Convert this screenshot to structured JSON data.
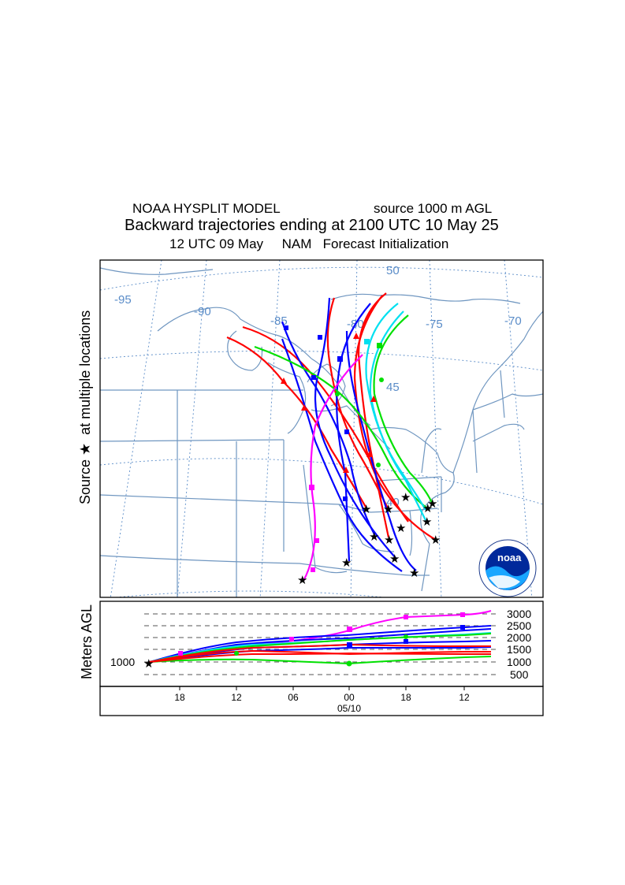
{
  "title": {
    "model": "NOAA HYSPLIT MODEL",
    "source": "source 1000 m AGL",
    "line2": "Backward trajectories ending at 2100 UTC 10 May 25",
    "line3": "12 UTC 09 May     NAM   Forecast Initialization"
  },
  "map": {
    "source_axis_label": "Source ★  at multiple locations",
    "grid_labels": {
      "lon_95": "-95",
      "lon_90": "-90",
      "lon_85": "-85",
      "lon_80": "-80",
      "lon_75": "-75",
      "lon_70": "-70",
      "lat_50": "50",
      "lat_45": "45",
      "lat_40": "40"
    },
    "logo_text": "noaa",
    "colors": {
      "map_lines": "#6f96c0",
      "grid": "#5a8cc8",
      "red": "#ff0000",
      "blue": "#0000ff",
      "green": "#00e000",
      "cyan": "#00e0f0",
      "magenta": "#ff00ff"
    }
  },
  "height_panel": {
    "y_axis_label": "Meters AGL",
    "start_label": "1000",
    "levels": [
      "3000",
      "2500",
      "2000",
      "1500",
      "1000",
      "500"
    ],
    "time_ticks": [
      "18",
      "12",
      "06",
      "00",
      "18",
      "12"
    ],
    "date_label": "05/10"
  }
}
